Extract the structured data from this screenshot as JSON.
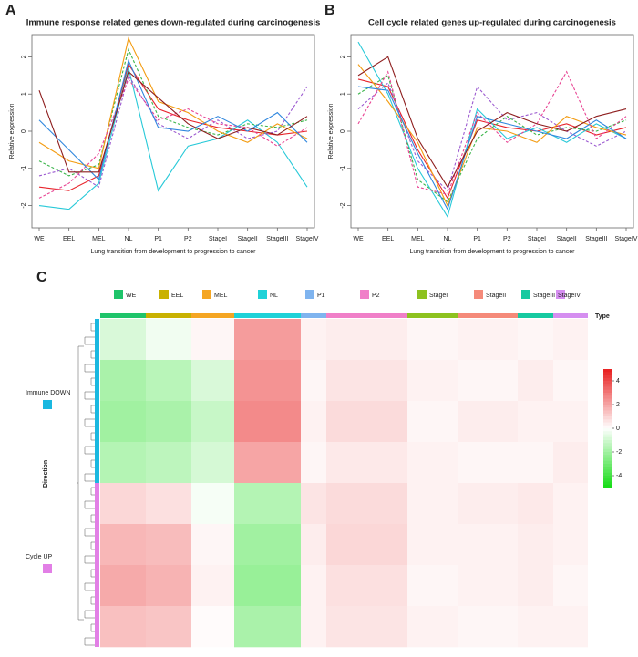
{
  "chart_data": [
    {
      "type": "line",
      "panel": "A",
      "title": "Immune response related genes down-regulated during carcinogenesis",
      "xlabel": "Lung transition from development to progression to cancer",
      "ylabel": "Relative expression",
      "categories": [
        "WE",
        "EEL",
        "MEL",
        "NL",
        "P1",
        "P2",
        "StageI",
        "StageII",
        "StageIII",
        "StageIV"
      ],
      "ylim": [
        -2.6,
        2.6
      ],
      "yticks": [
        -2,
        -1,
        0,
        1,
        2
      ],
      "series": [
        {
          "color": "#e8232a",
          "dashed": false,
          "values": [
            -1.5,
            -1.6,
            -1.2,
            1.8,
            0.6,
            0.3,
            0.1,
            0.0,
            -0.1,
            0.0
          ]
        },
        {
          "color": "#27c9d8",
          "dashed": false,
          "values": [
            -2.0,
            -2.1,
            -1.4,
            1.7,
            -1.6,
            -0.4,
            -0.2,
            0.3,
            -0.3,
            -1.5
          ]
        },
        {
          "color": "#3ab54a",
          "dashed": true,
          "values": [
            -0.8,
            -1.2,
            -0.9,
            2.2,
            0.4,
            0.1,
            -0.1,
            0.2,
            0.1,
            0.3
          ]
        },
        {
          "color": "#9b59d0",
          "dashed": true,
          "values": [
            -1.2,
            -1.0,
            -1.5,
            1.5,
            0.2,
            -0.2,
            0.3,
            -0.2,
            0.0,
            1.2
          ]
        },
        {
          "color": "#f39c12",
          "dashed": false,
          "values": [
            -0.3,
            -0.8,
            -1.0,
            2.5,
            0.8,
            0.5,
            0.0,
            -0.3,
            0.2,
            -0.2
          ]
        },
        {
          "color": "#e84393",
          "dashed": true,
          "values": [
            -1.8,
            -1.4,
            -0.6,
            1.4,
            0.3,
            0.6,
            0.2,
            0.1,
            -0.4,
            0.1
          ]
        },
        {
          "color": "#2e86de",
          "dashed": false,
          "values": [
            0.3,
            -0.5,
            -1.3,
            1.9,
            0.1,
            0.0,
            0.4,
            0.0,
            0.5,
            -0.3
          ]
        },
        {
          "color": "#8e1e1e",
          "dashed": false,
          "values": [
            1.1,
            -1.1,
            -1.1,
            1.6,
            0.9,
            0.2,
            -0.2,
            0.1,
            -0.1,
            0.4
          ]
        }
      ]
    },
    {
      "type": "line",
      "panel": "B",
      "title": "Cell cycle related genes up-regulated during carcinogenesis",
      "xlabel": "Lung transition from development to progression to cancer",
      "ylabel": "Relative expression",
      "categories": [
        "WE",
        "EEL",
        "MEL",
        "NL",
        "P1",
        "P2",
        "StageI",
        "StageII",
        "StageIII",
        "StageIV"
      ],
      "ylim": [
        -2.6,
        2.6
      ],
      "yticks": [
        -2,
        -1,
        0,
        1,
        2
      ],
      "series": [
        {
          "color": "#e8232a",
          "dashed": false,
          "values": [
            1.4,
            1.2,
            -0.5,
            -1.8,
            0.3,
            0.1,
            0.0,
            0.2,
            -0.1,
            0.1
          ]
        },
        {
          "color": "#27c9d8",
          "dashed": false,
          "values": [
            2.4,
            1.0,
            -1.0,
            -2.3,
            0.6,
            -0.2,
            0.1,
            -0.3,
            0.2,
            -0.2
          ]
        },
        {
          "color": "#3ab54a",
          "dashed": true,
          "values": [
            1.0,
            1.5,
            -1.3,
            -1.9,
            -0.2,
            0.4,
            -0.1,
            0.1,
            0.0,
            0.3
          ]
        },
        {
          "color": "#9b59d0",
          "dashed": true,
          "values": [
            0.6,
            1.3,
            -0.8,
            -1.6,
            1.2,
            0.3,
            0.5,
            0.0,
            -0.4,
            0.0
          ]
        },
        {
          "color": "#f39c12",
          "dashed": false,
          "values": [
            1.8,
            0.8,
            -0.3,
            -2.0,
            0.1,
            0.0,
            -0.3,
            0.4,
            0.1,
            -0.1
          ]
        },
        {
          "color": "#e84393",
          "dashed": true,
          "values": [
            0.2,
            1.6,
            -1.5,
            -1.7,
            0.5,
            -0.3,
            0.2,
            1.6,
            -0.2,
            0.4
          ]
        },
        {
          "color": "#2e86de",
          "dashed": false,
          "values": [
            1.2,
            1.1,
            -0.6,
            -2.1,
            0.4,
            0.2,
            0.0,
            -0.2,
            0.3,
            -0.2
          ]
        },
        {
          "color": "#8e1e1e",
          "dashed": false,
          "values": [
            1.5,
            2.0,
            -0.2,
            -1.5,
            0.0,
            0.5,
            0.2,
            0.0,
            0.4,
            0.6
          ]
        }
      ]
    },
    {
      "type": "heatmap",
      "panel": "C",
      "legend_title": "Type",
      "row_label": "Direction",
      "columns": [
        {
          "name": "WE",
          "color": "#1fc46a"
        },
        {
          "name": "EEL",
          "color": "#c9b100"
        },
        {
          "name": "MEL",
          "color": "#f5a623"
        },
        {
          "name": "NL",
          "color": "#1fd2d8"
        },
        {
          "name": "P1",
          "color": "#7fb4ef"
        },
        {
          "name": "P2",
          "color": "#f07fc8"
        },
        {
          "name": "StageI",
          "color": "#8dc21f"
        },
        {
          "name": "StageII",
          "color": "#f58a7a"
        },
        {
          "name": "StageIII",
          "color": "#16c9a0"
        },
        {
          "name": "StageIV",
          "color": "#d58ef0"
        }
      ],
      "zlim": [
        -5,
        5
      ],
      "zticks": [
        4,
        2,
        0,
        -2,
        -4
      ],
      "groups": [
        {
          "name": "Immune DOWN",
          "color": "#1ab8e0",
          "values": [
            [
              -0.8,
              -0.3,
              0.2,
              2.2,
              0.3,
              0.4,
              0.2,
              0.3,
              0.2,
              0.3
            ],
            [
              -1.8,
              -1.5,
              -0.8,
              2.4,
              0.2,
              0.6,
              0.3,
              0.2,
              0.4,
              0.2
            ],
            [
              -2.0,
              -1.8,
              -1.2,
              2.6,
              0.3,
              0.8,
              0.2,
              0.4,
              0.3,
              0.3
            ],
            [
              -1.6,
              -1.4,
              -0.9,
              2.0,
              0.2,
              0.5,
              0.3,
              0.2,
              0.2,
              0.4
            ]
          ]
        },
        {
          "name": "Cycle UP",
          "color": "#e27fe6",
          "values": [
            [
              0.9,
              0.7,
              -0.2,
              -1.6,
              0.6,
              0.8,
              0.3,
              0.4,
              0.5,
              0.3
            ],
            [
              1.6,
              1.5,
              0.2,
              -2.0,
              0.4,
              0.9,
              0.3,
              0.3,
              0.4,
              0.3
            ],
            [
              1.9,
              1.7,
              0.3,
              -2.2,
              0.3,
              0.7,
              0.2,
              0.3,
              0.4,
              0.2
            ],
            [
              1.4,
              1.3,
              0.1,
              -1.8,
              0.3,
              0.6,
              0.3,
              0.2,
              0.3,
              0.3
            ]
          ]
        }
      ]
    }
  ]
}
